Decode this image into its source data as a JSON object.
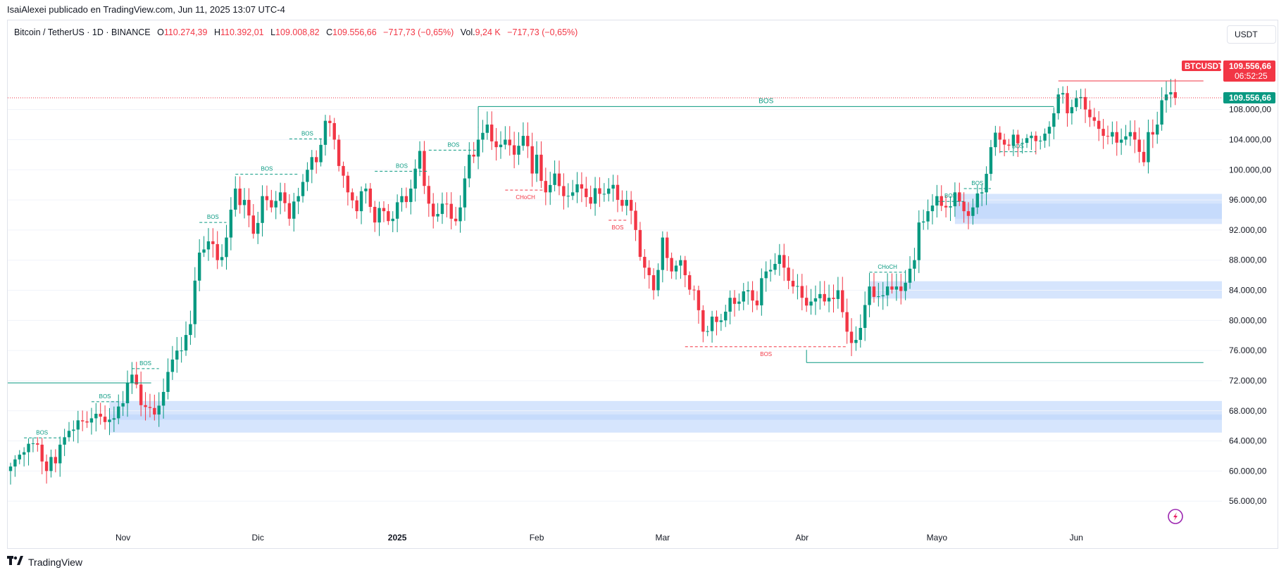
{
  "publisher_line": "IsaiAlexei publicado en TradingView.com, Jun 11, 2025 13:07 UTC-4",
  "legend": {
    "symbol": "Bitcoin / TetherUS · 1D · BINANCE",
    "o_label": "O",
    "o": "110.274,39",
    "h_label": "H",
    "h": "110.392,01",
    "l_label": "L",
    "l": "109.008,82",
    "c_label": "C",
    "c": "109.556,66",
    "change": "−717,73 (−0,65%)",
    "vol_label": "Vol.",
    "vol": "9,24 K",
    "vol_change": "−717,73 (−0,65%)"
  },
  "currency_button": "USDT",
  "price_tags": {
    "ticker": "BTCUSDT",
    "last_price": "109.556,66",
    "countdown": "06:52:25",
    "last_price_2": "109.556,66"
  },
  "footer": {
    "brand": "TradingView",
    "logo_icon": "tradingview-logo-icon"
  },
  "colors": {
    "up": "#089981",
    "down": "#f23645",
    "zone": "#bbd3fb",
    "grid": "#f0f3fa"
  },
  "chart_data": {
    "type": "candlestick",
    "symbol": "BTCUSDT",
    "interval": "1D",
    "ylim": [
      52000,
      116000
    ],
    "y_ticks": [
      {
        "value": 108000,
        "label": "108.000,00"
      },
      {
        "value": 104000,
        "label": "104.000,00"
      },
      {
        "value": 100000,
        "label": "100.000,00"
      },
      {
        "value": 96000,
        "label": "96.000,00"
      },
      {
        "value": 92000,
        "label": "92.000,00"
      },
      {
        "value": 88000,
        "label": "88.000,00"
      },
      {
        "value": 84000,
        "label": "84.000,00"
      },
      {
        "value": 80000,
        "label": "80.000,00"
      },
      {
        "value": 76000,
        "label": "76.000,00"
      },
      {
        "value": 72000,
        "label": "72.000,00"
      },
      {
        "value": 68000,
        "label": "68.000,00"
      },
      {
        "value": 64000,
        "label": "64.000,00"
      },
      {
        "value": 60000,
        "label": "60.000,00"
      },
      {
        "value": 56000,
        "label": "56.000,00"
      }
    ],
    "x_ticks": [
      {
        "day": 25,
        "label": "Nov"
      },
      {
        "day": 55,
        "label": "Dic"
      },
      {
        "day": 86,
        "label": "2025"
      },
      {
        "day": 117,
        "label": "Feb"
      },
      {
        "day": 145,
        "label": "Mar"
      },
      {
        "day": 176,
        "label": "Abr"
      },
      {
        "day": 206,
        "label": "Mayo"
      },
      {
        "day": 237,
        "label": "Jun"
      }
    ],
    "last_price": 109556.66,
    "anchors": [
      [
        0,
        60600
      ],
      [
        3,
        62500
      ],
      [
        6,
        63500
      ],
      [
        8,
        60000
      ],
      [
        11,
        63500
      ],
      [
        14,
        65500
      ],
      [
        18,
        67000
      ],
      [
        21,
        66500
      ],
      [
        23,
        67000
      ],
      [
        25,
        69000
      ],
      [
        27,
        72800
      ],
      [
        30,
        68500
      ],
      [
        32,
        67500
      ],
      [
        34,
        70500
      ],
      [
        36,
        74800
      ],
      [
        38,
        76000
      ],
      [
        40,
        79500
      ],
      [
        42,
        89000
      ],
      [
        44,
        90500
      ],
      [
        46,
        88000
      ],
      [
        48,
        91000
      ],
      [
        50,
        97500
      ],
      [
        52,
        96000
      ],
      [
        54,
        91500
      ],
      [
        56,
        96500
      ],
      [
        58,
        95000
      ],
      [
        60,
        97000
      ],
      [
        62,
        93500
      ],
      [
        64,
        96500
      ],
      [
        66,
        100000
      ],
      [
        68,
        101000
      ],
      [
        70,
        106500
      ],
      [
        72,
        104000
      ],
      [
        73,
        100500
      ],
      [
        75,
        97000
      ],
      [
        77,
        94500
      ],
      [
        79,
        97500
      ],
      [
        81,
        93000
      ],
      [
        83,
        94500
      ],
      [
        85,
        93500
      ],
      [
        87,
        96500
      ],
      [
        89,
        97500
      ],
      [
        91,
        102500
      ],
      [
        93,
        95500
      ],
      [
        94,
        93800
      ],
      [
        96,
        95500
      ],
      [
        98,
        93500
      ],
      [
        100,
        95000
      ],
      [
        102,
        102000
      ],
      [
        104,
        104000
      ],
      [
        106,
        106000
      ],
      [
        108,
        103000
      ],
      [
        110,
        104000
      ],
      [
        112,
        102000
      ],
      [
        114,
        104500
      ],
      [
        116,
        99500
      ],
      [
        117,
        102000
      ],
      [
        119,
        97000
      ],
      [
        121,
        99500
      ],
      [
        123,
        96500
      ],
      [
        125,
        97000
      ],
      [
        127,
        97500
      ],
      [
        129,
        95500
      ],
      [
        131,
        96800
      ],
      [
        133,
        97500
      ],
      [
        135,
        96000
      ],
      [
        137,
        96000
      ],
      [
        139,
        92000
      ],
      [
        141,
        87000
      ],
      [
        142,
        86000
      ],
      [
        143,
        84000
      ],
      [
        145,
        91000
      ],
      [
        147,
        86500
      ],
      [
        149,
        88000
      ],
      [
        150,
        86000
      ],
      [
        152,
        84000
      ],
      [
        154,
        78500
      ],
      [
        156,
        80500
      ],
      [
        158,
        80000
      ],
      [
        160,
        83000
      ],
      [
        162,
        82500
      ],
      [
        164,
        84000
      ],
      [
        166,
        82000
      ],
      [
        168,
        86500
      ],
      [
        170,
        87500
      ],
      [
        172,
        87000
      ],
      [
        174,
        84500
      ],
      [
        176,
        83000
      ],
      [
        178,
        82500
      ],
      [
        180,
        83500
      ],
      [
        182,
        83000
      ],
      [
        184,
        84000
      ],
      [
        186,
        78500
      ],
      [
        187,
        77000
      ],
      [
        189,
        79000
      ],
      [
        191,
        84500
      ],
      [
        193,
        83200
      ],
      [
        195,
        84500
      ],
      [
        197,
        84500
      ],
      [
        199,
        85000
      ],
      [
        201,
        88000
      ],
      [
        202,
        93000
      ],
      [
        204,
        94500
      ],
      [
        206,
        96500
      ],
      [
        208,
        95000
      ],
      [
        210,
        97000
      ],
      [
        212,
        94500
      ],
      [
        214,
        95000
      ],
      [
        216,
        97000
      ],
      [
        218,
        103000
      ],
      [
        220,
        104000
      ],
      [
        222,
        103200
      ],
      [
        224,
        103500
      ],
      [
        226,
        104200
      ],
      [
        228,
        103800
      ],
      [
        230,
        104800
      ],
      [
        232,
        107500
      ],
      [
        233,
        110000
      ],
      [
        235,
        107500
      ],
      [
        237,
        109500
      ],
      [
        239,
        108000
      ],
      [
        241,
        106500
      ],
      [
        243,
        104500
      ],
      [
        245,
        105000
      ],
      [
        247,
        104000
      ],
      [
        249,
        105000
      ],
      [
        250,
        104000
      ],
      [
        252,
        101000
      ],
      [
        253,
        105000
      ],
      [
        255,
        106000
      ],
      [
        257,
        110000
      ],
      [
        258,
        110300
      ],
      [
        259,
        109557
      ]
    ],
    "zones": [
      {
        "from_day": 22,
        "y1": 65100,
        "y2": 69300
      },
      {
        "from_day": 22,
        "y1": 66800,
        "y2": 67500
      },
      {
        "from_day": 210,
        "y1": 92800,
        "y2": 96800
      },
      {
        "from_day": 210,
        "y1": 93500,
        "y2": 95500
      },
      {
        "from_day": 191,
        "y1": 82900,
        "y2": 85200
      }
    ],
    "structure_labels": [
      {
        "text": "BOS",
        "kind": "bull",
        "x1": 3,
        "x2": 11,
        "y": 64400
      },
      {
        "text": "BOS",
        "kind": "bull",
        "x1": 18,
        "x2": 24,
        "y": 69200
      },
      {
        "text": "BOS",
        "kind": "bull",
        "x1": 27,
        "x2": 33,
        "y": 73600
      },
      {
        "text": "BOS",
        "kind": "bull",
        "x1": 42,
        "x2": 48,
        "y": 93000
      },
      {
        "text": "BOS",
        "kind": "bull",
        "x1": 50,
        "x2": 64,
        "y": 99400
      },
      {
        "text": "BOS",
        "kind": "bull",
        "x1": 62,
        "x2": 70,
        "y": 104100
      },
      {
        "text": "BOS",
        "kind": "bull",
        "x1": 81,
        "x2": 93,
        "y": 99800
      },
      {
        "text": "BOS",
        "kind": "bull",
        "x1": 93,
        "x2": 104,
        "y": 102600
      },
      {
        "text": "BOS",
        "kind": "bull",
        "x1": 104,
        "x2": 232,
        "y": 108400,
        "solid": true
      },
      {
        "text": "BOS",
        "kind": "bull",
        "x1": 206,
        "x2": 212,
        "y": 95800
      },
      {
        "text": "BOS",
        "kind": "bull",
        "x1": 212,
        "x2": 218,
        "y": 97500
      },
      {
        "text": "BOS",
        "kind": "bull",
        "x1": 220,
        "x2": 228,
        "y": 102400
      },
      {
        "text": "CHoCH",
        "kind": "bull",
        "x1": 191,
        "x2": 199,
        "y": 86400
      },
      {
        "text": "CHoCH",
        "kind": "bear",
        "x1": 110,
        "x2": 119,
        "y": 97300
      },
      {
        "text": "BOS",
        "kind": "bear",
        "x1": 133,
        "x2": 137,
        "y": 93300
      },
      {
        "text": "BOS",
        "kind": "bear",
        "x1": 150,
        "x2": 186,
        "y": 76500
      }
    ],
    "levels": [
      {
        "kind": "bull",
        "x1": -1,
        "x2": 25,
        "y": 71700
      },
      {
        "kind": "bull",
        "x1": 177,
        "x2": 259,
        "y": 74400
      },
      {
        "kind": "bear",
        "x1": 233,
        "x2": 259,
        "y": 111800
      }
    ]
  }
}
